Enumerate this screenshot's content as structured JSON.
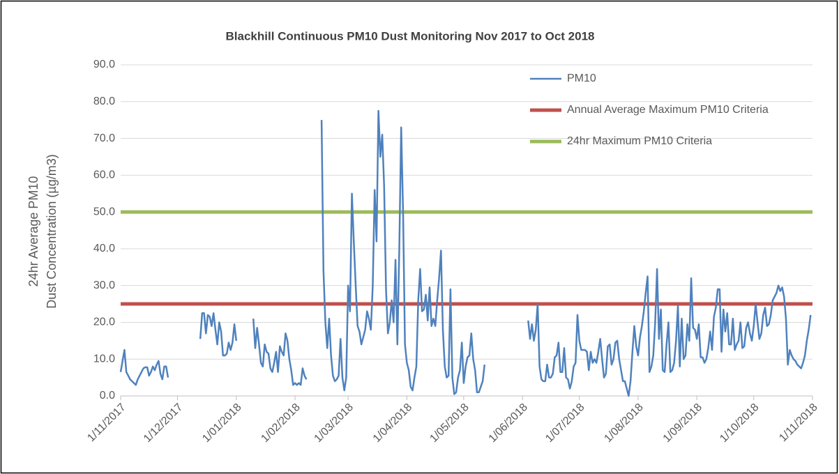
{
  "chart_data": {
    "type": "line",
    "title": "Blackhill  Continuous PM10 Dust Monitoring  Nov 2017 to Oct 2018",
    "y_label": [
      "24hr Average PM10",
      "Dust Concentration (µg/m3)"
    ],
    "xlim": [
      "1/11/2017",
      "1/11/2018"
    ],
    "xticks": [
      "1/11/2017",
      "1/12/2017",
      "1/01/2018",
      "1/02/2018",
      "1/03/2018",
      "1/04/2018",
      "1/05/2018",
      "1/06/2018",
      "1/07/2018",
      "1/08/2018",
      "1/09/2018",
      "1/10/2018",
      "1/11/2018"
    ],
    "ylim": [
      0,
      90
    ],
    "yticks": [
      {
        "value": 0,
        "label": "0.0"
      },
      {
        "value": 10,
        "label": "10.0"
      },
      {
        "value": 20,
        "label": "20.0"
      },
      {
        "value": 30,
        "label": "30.0"
      },
      {
        "value": 40,
        "label": "40.0"
      },
      {
        "value": 50,
        "label": "50.0"
      },
      {
        "value": 60,
        "label": "60.0"
      },
      {
        "value": 70,
        "label": "70.0"
      },
      {
        "value": 80,
        "label": "80.0"
      },
      {
        "value": 90,
        "label": "90.0"
      }
    ],
    "grid": true,
    "x": [
      "1/11/2017",
      "2/11/2017",
      "3/11/2017",
      "4/11/2017",
      "5/11/2017",
      "6/11/2017",
      "7/11/2017",
      "8/11/2017",
      "9/11/2017",
      "10/11/2017",
      "11/11/2017",
      "12/11/2017",
      "13/11/2017",
      "14/11/2017",
      "15/11/2017",
      "16/11/2017",
      "17/11/2017",
      "18/11/2017",
      "19/11/2017",
      "20/11/2017",
      "21/11/2017",
      "22/11/2017",
      "23/11/2017",
      "24/11/2017",
      "25/11/2017",
      "26/11/2017",
      "5/12/2017",
      "13/12/2017",
      "14/12/2017",
      "15/12/2017",
      "16/12/2017",
      "17/12/2017",
      "18/12/2017",
      "19/12/2017",
      "20/12/2017",
      "21/12/2017",
      "22/12/2017",
      "23/12/2017",
      "24/12/2017",
      "25/12/2017",
      "26/12/2017",
      "27/12/2017",
      "28/12/2017",
      "29/12/2017",
      "30/12/2017",
      "31/12/2017",
      "1/01/2018",
      "5/01/2018",
      "10/01/2018",
      "11/01/2018",
      "12/01/2018",
      "13/01/2018",
      "14/01/2018",
      "15/01/2018",
      "16/01/2018",
      "17/01/2018",
      "18/01/2018",
      "19/01/2018",
      "20/01/2018",
      "21/01/2018",
      "22/01/2018",
      "23/01/2018",
      "24/01/2018",
      "25/01/2018",
      "26/01/2018",
      "27/01/2018",
      "28/01/2018",
      "29/01/2018",
      "30/01/2018",
      "31/01/2018",
      "1/02/2018",
      "2/02/2018",
      "3/02/2018",
      "4/02/2018",
      "5/02/2018",
      "6/02/2018",
      "7/02/2018",
      "11/02/2018",
      "15/02/2018",
      "16/02/2018",
      "17/02/2018",
      "18/02/2018",
      "19/02/2018",
      "20/02/2018",
      "21/02/2018",
      "22/02/2018",
      "23/02/2018",
      "24/02/2018",
      "25/02/2018",
      "26/02/2018",
      "27/02/2018",
      "28/02/2018",
      "1/03/2018",
      "2/03/2018",
      "3/03/2018",
      "4/03/2018",
      "5/03/2018",
      "6/03/2018",
      "7/03/2018",
      "8/03/2018",
      "9/03/2018",
      "10/03/2018",
      "11/03/2018",
      "12/03/2018",
      "13/03/2018",
      "14/03/2018",
      "15/03/2018",
      "16/03/2018",
      "17/03/2018",
      "18/03/2018",
      "19/03/2018",
      "20/03/2018",
      "21/03/2018",
      "22/03/2018",
      "23/03/2018",
      "24/03/2018",
      "25/03/2018",
      "26/03/2018",
      "27/03/2018",
      "28/03/2018",
      "29/03/2018",
      "30/03/2018",
      "31/03/2018",
      "1/04/2018",
      "2/04/2018",
      "3/04/2018",
      "4/04/2018",
      "5/04/2018",
      "6/04/2018",
      "7/04/2018",
      "8/04/2018",
      "9/04/2018",
      "10/04/2018",
      "11/04/2018",
      "12/04/2018",
      "13/04/2018",
      "14/04/2018",
      "15/04/2018",
      "16/04/2018",
      "17/04/2018",
      "18/04/2018",
      "19/04/2018",
      "20/04/2018",
      "21/04/2018",
      "22/04/2018",
      "23/04/2018",
      "24/04/2018",
      "25/04/2018",
      "26/04/2018",
      "27/04/2018",
      "28/04/2018",
      "29/04/2018",
      "30/04/2018",
      "1/05/2018",
      "2/05/2018",
      "3/05/2018",
      "4/05/2018",
      "5/05/2018",
      "6/05/2018",
      "7/05/2018",
      "8/05/2018",
      "9/05/2018",
      "10/05/2018",
      "11/05/2018",
      "12/05/2018",
      "20/05/2018",
      "4/06/2018",
      "5/06/2018",
      "6/06/2018",
      "7/06/2018",
      "8/06/2018",
      "9/06/2018",
      "10/06/2018",
      "11/06/2018",
      "12/06/2018",
      "13/06/2018",
      "14/06/2018",
      "15/06/2018",
      "16/06/2018",
      "17/06/2018",
      "18/06/2018",
      "19/06/2018",
      "20/06/2018",
      "21/06/2018",
      "22/06/2018",
      "23/06/2018",
      "24/06/2018",
      "25/06/2018",
      "26/06/2018",
      "27/06/2018",
      "28/06/2018",
      "29/06/2018",
      "30/06/2018",
      "1/07/2018",
      "2/07/2018",
      "3/07/2018",
      "4/07/2018",
      "5/07/2018",
      "6/07/2018",
      "7/07/2018",
      "8/07/2018",
      "9/07/2018",
      "10/07/2018",
      "11/07/2018",
      "12/07/2018",
      "13/07/2018",
      "14/07/2018",
      "15/07/2018",
      "16/07/2018",
      "17/07/2018",
      "18/07/2018",
      "19/07/2018",
      "20/07/2018",
      "21/07/2018",
      "22/07/2018",
      "23/07/2018",
      "24/07/2018",
      "25/07/2018",
      "26/07/2018",
      "27/07/2018",
      "28/07/2018",
      "29/07/2018",
      "30/07/2018",
      "31/07/2018",
      "1/08/2018",
      "2/08/2018",
      "3/08/2018",
      "4/08/2018",
      "5/08/2018",
      "6/08/2018",
      "7/08/2018",
      "8/08/2018",
      "9/08/2018",
      "10/08/2018",
      "11/08/2018",
      "12/08/2018",
      "13/08/2018",
      "14/08/2018",
      "15/08/2018",
      "16/08/2018",
      "17/08/2018",
      "18/08/2018",
      "19/08/2018",
      "20/08/2018",
      "21/08/2018",
      "22/08/2018",
      "23/08/2018",
      "24/08/2018",
      "25/08/2018",
      "26/08/2018",
      "27/08/2018",
      "28/08/2018",
      "29/08/2018",
      "30/08/2018",
      "31/08/2018",
      "1/09/2018",
      "2/09/2018",
      "3/09/2018",
      "4/09/2018",
      "5/09/2018",
      "6/09/2018",
      "7/09/2018",
      "8/09/2018",
      "9/09/2018",
      "10/09/2018",
      "11/09/2018",
      "12/09/2018",
      "13/09/2018",
      "14/09/2018",
      "15/09/2018",
      "16/09/2018",
      "17/09/2018",
      "18/09/2018",
      "19/09/2018",
      "20/09/2018",
      "21/09/2018",
      "22/09/2018",
      "23/09/2018",
      "24/09/2018",
      "25/09/2018",
      "26/09/2018",
      "27/09/2018",
      "28/09/2018",
      "29/09/2018",
      "30/09/2018",
      "1/10/2018",
      "2/10/2018",
      "3/10/2018",
      "4/10/2018",
      "5/10/2018",
      "6/10/2018",
      "7/10/2018",
      "8/10/2018",
      "9/10/2018",
      "10/10/2018",
      "11/10/2018",
      "12/10/2018",
      "13/10/2018",
      "14/10/2018",
      "15/10/2018",
      "16/10/2018",
      "17/10/2018",
      "18/10/2018",
      "19/10/2018",
      "20/10/2018",
      "21/10/2018",
      "22/10/2018",
      "23/10/2018",
      "24/10/2018",
      "25/10/2018",
      "26/10/2018",
      "27/10/2018",
      "28/10/2018",
      "29/10/2018",
      "30/10/2018",
      "31/10/2018"
    ],
    "series": [
      {
        "name": "PM10",
        "color": "#4f81bd",
        "values": [
          6.5,
          9.5,
          12.5,
          6.5,
          5.5,
          4.5,
          4,
          3.5,
          3,
          4.5,
          5.5,
          6.5,
          7.5,
          7.8,
          7.8,
          5.5,
          6.5,
          8,
          7,
          8.5,
          9.5,
          6,
          4.5,
          8,
          8,
          5,
          null,
          15.5,
          22.5,
          22.5,
          17,
          22,
          21.5,
          19,
          22.5,
          18,
          14,
          20,
          17.5,
          11,
          11,
          11.5,
          14.5,
          12.5,
          14.5,
          19.5,
          15,
          null,
          21,
          13,
          18.5,
          14,
          9,
          8,
          14,
          12,
          11.5,
          7.5,
          6.5,
          9,
          12,
          6.5,
          13.5,
          12,
          11,
          17,
          15,
          10,
          7,
          3,
          3.5,
          3,
          3.5,
          3,
          7.5,
          5.5,
          4.5,
          null,
          75,
          34,
          20,
          13,
          21,
          11,
          5.5,
          4,
          4.5,
          5.5,
          15.5,
          5,
          1.5,
          5,
          30,
          23,
          55,
          42,
          30,
          19,
          17.5,
          14,
          16,
          18,
          23,
          21,
          18,
          30,
          56,
          42,
          77.5,
          65,
          71,
          57,
          29,
          17,
          20,
          26,
          20,
          37,
          14,
          40,
          73,
          50,
          14,
          9,
          7,
          2.5,
          1.5,
          5,
          8,
          26,
          34.5,
          23,
          23.5,
          27.5,
          20.5,
          29.5,
          19,
          21,
          19,
          26,
          32,
          39.5,
          18,
          8,
          5,
          5.5,
          29,
          5,
          0.5,
          1,
          5,
          7,
          14.5,
          3.5,
          8,
          10.5,
          11,
          17,
          10,
          7,
          1,
          1,
          2.5,
          4,
          8.5,
          null,
          20.5,
          15.5,
          19.5,
          15,
          18,
          25,
          8,
          4.5,
          4,
          4,
          8.5,
          5,
          5,
          6,
          10.5,
          11,
          14.5,
          6.5,
          6.5,
          13,
          5,
          4.5,
          2,
          4,
          8,
          9,
          22,
          15,
          12.5,
          12.5,
          12.5,
          12,
          7,
          12,
          9,
          10,
          9,
          12,
          15.5,
          10,
          5,
          6,
          13.5,
          14,
          8.5,
          10,
          14.5,
          15,
          10,
          7,
          4,
          4,
          2,
          0,
          4,
          12,
          19,
          13.5,
          11,
          16,
          19,
          23,
          28,
          32.5,
          6.5,
          8,
          11,
          20,
          34.5,
          15.5,
          23.5,
          7,
          6.5,
          14,
          20,
          6.5,
          7,
          9,
          15,
          24.5,
          8,
          21,
          10,
          11,
          19.5,
          15,
          32,
          18.5,
          18,
          15.5,
          19.5,
          10.5,
          10.5,
          9,
          10,
          13,
          17.5,
          12.5,
          21.5,
          24,
          29,
          29,
          12,
          23.5,
          17.5,
          22.5,
          14,
          14,
          21,
          12.5,
          14,
          15,
          20,
          13,
          13.5,
          18.5,
          20,
          17,
          15,
          19,
          25,
          20,
          15.5,
          17,
          22,
          24,
          19,
          19.5,
          22,
          26,
          27,
          28,
          30,
          28.5,
          29.5,
          27,
          21,
          8.5,
          12.5,
          11,
          10,
          9.5,
          8.5,
          8,
          7.5,
          9,
          11,
          15,
          18,
          22
        ]
      }
    ],
    "reference_lines": [
      {
        "name": "Annual Average Maximum PM10 Criteria",
        "color": "#c0504d",
        "value": 25
      },
      {
        "name": "24hr Maximum PM10 Criteria",
        "color": "#9bbb59",
        "value": 50
      }
    ],
    "legend": "top-right"
  }
}
